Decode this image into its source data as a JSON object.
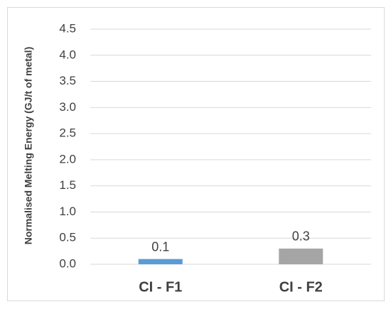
{
  "chart_data": {
    "type": "bar",
    "y_label": "Normalised Melting Energy (GJ/t of metal)",
    "categories": [
      "CI - F1",
      "CI - F2"
    ],
    "values": [
      0.1,
      0.3
    ],
    "colors": [
      "#5b9bd5",
      "#a5a5a5"
    ],
    "ylim": [
      0,
      4.5
    ],
    "yticks": [
      {
        "value": 0,
        "label": "0.0"
      },
      {
        "value": 0.5,
        "label": "0.5"
      },
      {
        "value": 1,
        "label": "1.0"
      },
      {
        "value": 1.5,
        "label": "1.5"
      },
      {
        "value": 2,
        "label": "2.0"
      },
      {
        "value": 2.5,
        "label": "2.5"
      },
      {
        "value": 3,
        "label": "3.0"
      },
      {
        "value": 3.5,
        "label": "3.5"
      },
      {
        "value": 4,
        "label": "4.0"
      },
      {
        "value": 4.5,
        "label": "4.5"
      }
    ],
    "grid": true
  }
}
